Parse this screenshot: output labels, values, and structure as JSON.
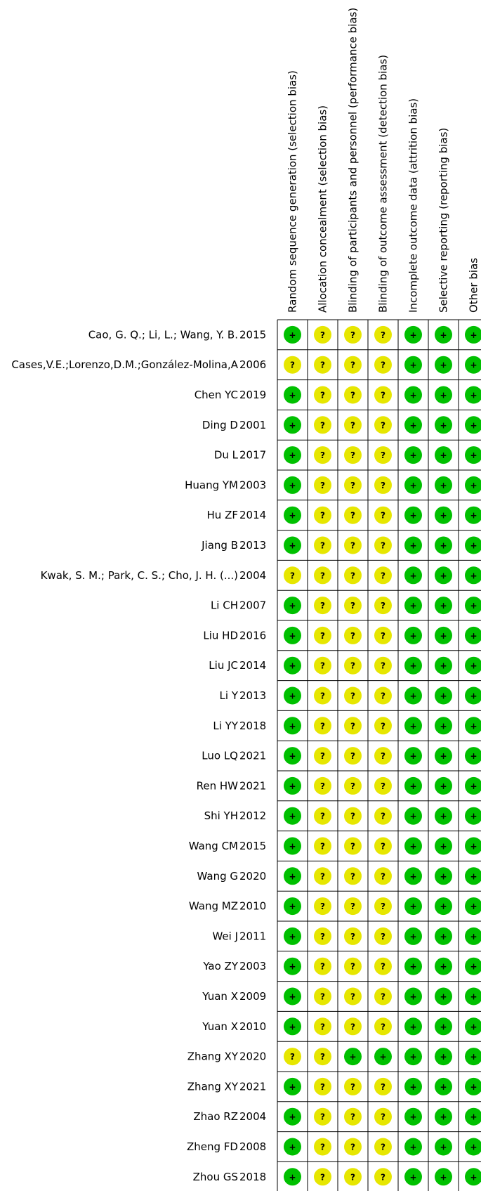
{
  "chart_data": {
    "type": "table",
    "columns": [
      "Random sequence generation (selection bias)",
      "Allocation concealment (selection bias)",
      "Blinding of participants and personnel (performance bias)",
      "Blinding of outcome assessment (detection bias)",
      "Incomplete outcome data (attrition bias)",
      "Selective reporting (reporting bias)",
      "Other bias"
    ],
    "legend": {
      "low": "+",
      "unclear": "?"
    },
    "colors": {
      "low": "#00c000",
      "unclear": "#e6e600",
      "grid": "#000000"
    },
    "rows": [
      {
        "author": "Cao, G. Q.; Li, L.; Wang, Y. B.",
        "year": "2015",
        "ratings": [
          "low",
          "unclear",
          "unclear",
          "unclear",
          "low",
          "low",
          "low"
        ]
      },
      {
        "author": "Cases,V.E.;Lorenzo,D.M.;González-Molina,A",
        "year": "2006",
        "ratings": [
          "unclear",
          "unclear",
          "unclear",
          "unclear",
          "low",
          "low",
          "low"
        ]
      },
      {
        "author": "Chen YC",
        "year": "2019",
        "ratings": [
          "low",
          "unclear",
          "unclear",
          "unclear",
          "low",
          "low",
          "low"
        ]
      },
      {
        "author": "Ding D",
        "year": "2001",
        "ratings": [
          "low",
          "unclear",
          "unclear",
          "unclear",
          "low",
          "low",
          "low"
        ]
      },
      {
        "author": "Du L",
        "year": "2017",
        "ratings": [
          "low",
          "unclear",
          "unclear",
          "unclear",
          "low",
          "low",
          "low"
        ]
      },
      {
        "author": "Huang YM",
        "year": "2003",
        "ratings": [
          "low",
          "unclear",
          "unclear",
          "unclear",
          "low",
          "low",
          "low"
        ]
      },
      {
        "author": "Hu ZF",
        "year": "2014",
        "ratings": [
          "low",
          "unclear",
          "unclear",
          "unclear",
          "low",
          "low",
          "low"
        ]
      },
      {
        "author": "Jiang B",
        "year": "2013",
        "ratings": [
          "low",
          "unclear",
          "unclear",
          "unclear",
          "low",
          "low",
          "low"
        ]
      },
      {
        "author": "Kwak, S. M.; Park, C. S.; Cho, J. H. (...)",
        "year": "2004",
        "ratings": [
          "unclear",
          "unclear",
          "unclear",
          "unclear",
          "low",
          "low",
          "low"
        ]
      },
      {
        "author": "Li CH",
        "year": "2007",
        "ratings": [
          "low",
          "unclear",
          "unclear",
          "unclear",
          "low",
          "low",
          "low"
        ]
      },
      {
        "author": "Liu HD",
        "year": "2016",
        "ratings": [
          "low",
          "unclear",
          "unclear",
          "unclear",
          "low",
          "low",
          "low"
        ]
      },
      {
        "author": "Liu JC",
        "year": "2014",
        "ratings": [
          "low",
          "unclear",
          "unclear",
          "unclear",
          "low",
          "low",
          "low"
        ]
      },
      {
        "author": "Li Y",
        "year": "2013",
        "ratings": [
          "low",
          "unclear",
          "unclear",
          "unclear",
          "low",
          "low",
          "low"
        ]
      },
      {
        "author": "Li YY",
        "year": "2018",
        "ratings": [
          "low",
          "unclear",
          "unclear",
          "unclear",
          "low",
          "low",
          "low"
        ]
      },
      {
        "author": "Luo LQ",
        "year": "2021",
        "ratings": [
          "low",
          "unclear",
          "unclear",
          "unclear",
          "low",
          "low",
          "low"
        ]
      },
      {
        "author": "Ren HW",
        "year": "2021",
        "ratings": [
          "low",
          "unclear",
          "unclear",
          "unclear",
          "low",
          "low",
          "low"
        ]
      },
      {
        "author": "Shi YH",
        "year": "2012",
        "ratings": [
          "low",
          "unclear",
          "unclear",
          "unclear",
          "low",
          "low",
          "low"
        ]
      },
      {
        "author": "Wang CM",
        "year": "2015",
        "ratings": [
          "low",
          "unclear",
          "unclear",
          "unclear",
          "low",
          "low",
          "low"
        ]
      },
      {
        "author": "Wang G",
        "year": "2020",
        "ratings": [
          "low",
          "unclear",
          "unclear",
          "unclear",
          "low",
          "low",
          "low"
        ]
      },
      {
        "author": "Wang MZ",
        "year": "2010",
        "ratings": [
          "low",
          "unclear",
          "unclear",
          "unclear",
          "low",
          "low",
          "low"
        ]
      },
      {
        "author": "Wei J",
        "year": "2011",
        "ratings": [
          "low",
          "unclear",
          "unclear",
          "unclear",
          "low",
          "low",
          "low"
        ]
      },
      {
        "author": "Yao ZY",
        "year": "2003",
        "ratings": [
          "low",
          "unclear",
          "unclear",
          "unclear",
          "low",
          "low",
          "low"
        ]
      },
      {
        "author": "Yuan X",
        "year": "2009",
        "ratings": [
          "low",
          "unclear",
          "unclear",
          "unclear",
          "low",
          "low",
          "low"
        ]
      },
      {
        "author": "Yuan X",
        "year": "2010",
        "ratings": [
          "low",
          "unclear",
          "unclear",
          "unclear",
          "low",
          "low",
          "low"
        ]
      },
      {
        "author": "Zhang XY",
        "year": "2020",
        "ratings": [
          "unclear",
          "unclear",
          "low",
          "low",
          "low",
          "low",
          "low"
        ]
      },
      {
        "author": "Zhang XY",
        "year": "2021",
        "ratings": [
          "low",
          "unclear",
          "unclear",
          "unclear",
          "low",
          "low",
          "low"
        ]
      },
      {
        "author": "Zhao RZ",
        "year": "2004",
        "ratings": [
          "low",
          "unclear",
          "unclear",
          "unclear",
          "low",
          "low",
          "low"
        ]
      },
      {
        "author": "Zheng FD",
        "year": "2008",
        "ratings": [
          "low",
          "unclear",
          "unclear",
          "unclear",
          "low",
          "low",
          "low"
        ]
      },
      {
        "author": "Zhou GS",
        "year": "2018",
        "ratings": [
          "low",
          "unclear",
          "unclear",
          "unclear",
          "low",
          "low",
          "low"
        ]
      }
    ]
  }
}
